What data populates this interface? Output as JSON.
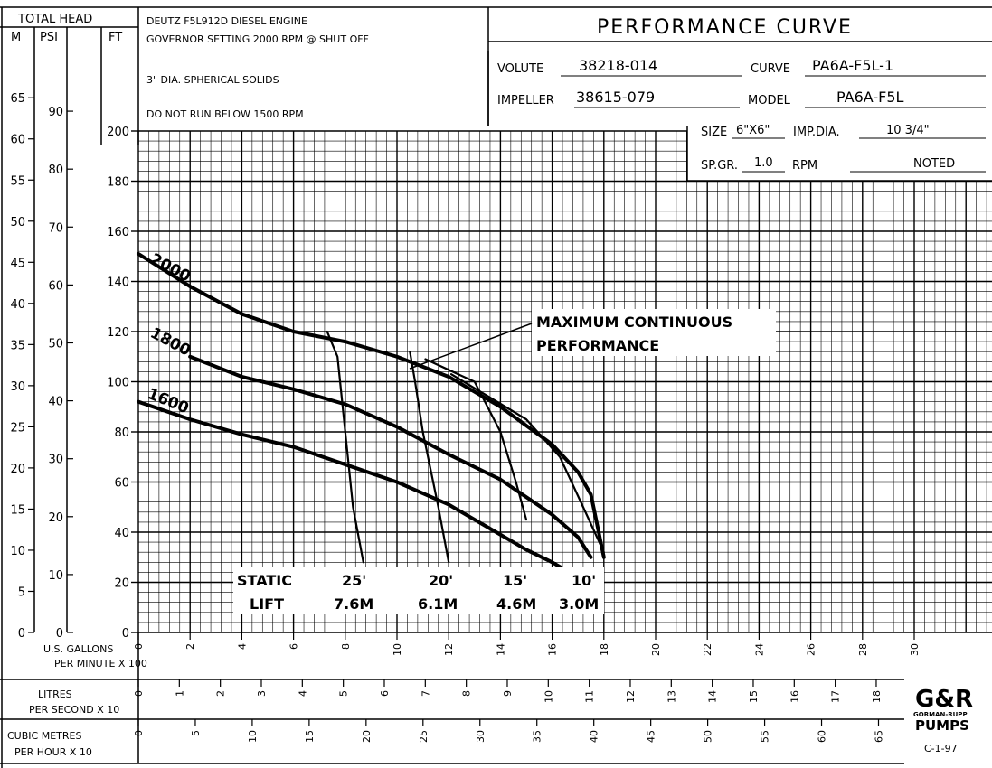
{
  "header": {
    "total_head_label": "TOTAL HEAD",
    "unit_m": "M",
    "unit_psi": "PSI",
    "unit_ft": "FT",
    "engine_line1": "DEUTZ F5L912D DIESEL ENGINE",
    "engine_line2": "GOVERNOR SETTING 2000 RPM @ SHUT OFF",
    "solids": "3\" DIA. SPHERICAL SOLIDS",
    "warning": "DO NOT RUN BELOW 1500 RPM",
    "title": "PERFORMANCE CURVE",
    "volute_label": "VOLUTE",
    "volute_value": "38218-014",
    "curve_label": "CURVE",
    "curve_value": "PA6A-F5L-1",
    "impeller_label": "IMPELLER",
    "impeller_value": "38615-079",
    "model_label": "MODEL",
    "model_value": "PA6A-F5L",
    "size_label": "SIZE",
    "size_value": "6\"X6\"",
    "impdia_label": "IMP.DIA.",
    "impdia_value": "10 3/4\"",
    "spgr_label": "SP.GR.",
    "spgr_value": "1.0",
    "rpm_label": "RPM",
    "rpm_value": "NOTED"
  },
  "footer": {
    "gpm_label_1": "U.S. GALLONS",
    "gpm_label_2": "PER MINUTE X 100",
    "lps_label_1": "LITRES",
    "lps_label_2": "PER SECOND X 10",
    "cmh_label_1": "CUBIC METRES",
    "cmh_label_2": "PER HOUR X 10",
    "logo_top": "G&R",
    "logo_mid": "GORMAN-RUPP",
    "logo_bottom": "PUMPS",
    "doc_code": "C-1-97"
  },
  "annotations": {
    "mcp_1": "MAXIMUM CONTINUOUS",
    "mcp_2": "PERFORMANCE",
    "static": "STATIC",
    "lift": "LIFT",
    "lift_ft": [
      "25'",
      "20'",
      "15'",
      "10'"
    ],
    "lift_m": [
      "7.6M",
      "6.1M",
      "4.6M",
      "3.0M"
    ]
  },
  "chart_data": {
    "type": "line",
    "title": "PERFORMANCE CURVE",
    "xlabel": "U.S. GALLONS PER MINUTE X 100",
    "ylabel": "TOTAL HEAD (FT)",
    "xlim": [
      0,
      34
    ],
    "ylim": [
      0,
      200
    ],
    "grid": true,
    "x_ticks": [
      "0",
      "2",
      "4",
      "6",
      "8",
      "10",
      "12",
      "14",
      "16",
      "18",
      "20",
      "22",
      "24",
      "26",
      "28",
      "30"
    ],
    "y_ticks_ft": [
      "0",
      "20",
      "40",
      "60",
      "80",
      "100",
      "120",
      "140",
      "160",
      "180",
      "200"
    ],
    "y_ticks_m": [
      "0",
      "5",
      "10",
      "15",
      "20",
      "25",
      "30",
      "35",
      "40",
      "45",
      "50",
      "55",
      "60",
      "65"
    ],
    "y_ticks_psi": [
      "0",
      "10",
      "20",
      "30",
      "40",
      "50",
      "60",
      "70",
      "80",
      "90"
    ],
    "lps_ticks": [
      "0",
      "1",
      "2",
      "3",
      "4",
      "5",
      "6",
      "7",
      "8",
      "9",
      "10",
      "11",
      "12",
      "13",
      "14",
      "15",
      "16",
      "17",
      "18"
    ],
    "cmh_ticks": [
      "0",
      "5",
      "10",
      "15",
      "20",
      "25",
      "30",
      "35",
      "40",
      "45",
      "50",
      "55",
      "60",
      "65"
    ],
    "series": [
      {
        "name": "2000",
        "x": [
          0,
          2,
          4,
          6,
          8,
          10,
          12,
          14,
          16,
          17,
          17.5,
          18
        ],
        "y": [
          151,
          138,
          127,
          120,
          116,
          110,
          102,
          90,
          75,
          64,
          55,
          30
        ]
      },
      {
        "name": "1800",
        "x": [
          2,
          4,
          6,
          8,
          10,
          12,
          14,
          16,
          17,
          17.5
        ],
        "y": [
          110,
          102,
          97,
          91,
          82,
          71,
          61,
          47,
          38,
          30
        ]
      },
      {
        "name": "1600",
        "x": [
          0,
          2,
          4,
          6,
          8,
          10,
          12,
          14,
          15,
          16,
          16.5
        ],
        "y": [
          92,
          85,
          79,
          74,
          67,
          60,
          51,
          39,
          33,
          28,
          25
        ]
      },
      {
        "name": "25'",
        "x": [
          7.3,
          7.7,
          8.0,
          8.3,
          8.7
        ],
        "y": [
          120,
          110,
          80,
          50,
          28
        ]
      },
      {
        "name": "20'",
        "x": [
          10.5,
          10.7,
          11.0,
          11.6,
          12.0
        ],
        "y": [
          112,
          100,
          80,
          50,
          28
        ]
      },
      {
        "name": "15'",
        "x": [
          11.1,
          13.0,
          14.0,
          14.6,
          15.0
        ],
        "y": [
          109,
          100,
          80,
          60,
          45
        ]
      },
      {
        "name": "10'",
        "x": [
          12.1,
          15.0,
          16.3,
          17.2,
          18.0
        ],
        "y": [
          103,
          85,
          70,
          50,
          32
        ]
      }
    ]
  }
}
